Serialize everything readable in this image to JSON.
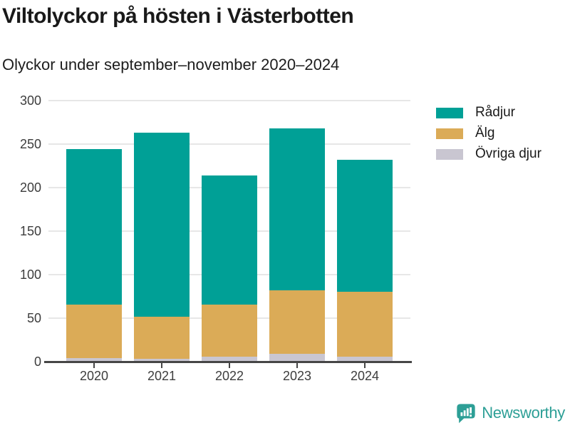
{
  "header": {
    "title": "Viltolyckor på hösten i Västerbotten",
    "subtitle": "Olyckor under september–november 2020–2024"
  },
  "chart_data": {
    "type": "bar",
    "stacked": true,
    "title": "Viltolyckor på hösten i Västerbotten",
    "subtitle": "Olyckor under september–november 2020–2024",
    "categories": [
      "2020",
      "2021",
      "2022",
      "2023",
      "2024"
    ],
    "series": [
      {
        "name": "Rådjur",
        "color": "#00a096",
        "values": [
          178,
          211,
          148,
          186,
          152
        ]
      },
      {
        "name": "Älg",
        "color": "#dbab57",
        "values": [
          62,
          49,
          60,
          73,
          74
        ]
      },
      {
        "name": "Övriga djur",
        "color": "#c9c6d1",
        "values": [
          4,
          3,
          6,
          9,
          6
        ]
      }
    ],
    "stack_order_bottom_to_top": [
      "Övriga djur",
      "Älg",
      "Rådjur"
    ],
    "xlabel": "",
    "ylabel": "",
    "ylim": [
      0,
      300
    ],
    "yticks": [
      0,
      50,
      100,
      150,
      200,
      250,
      300
    ],
    "grid": "horizontal",
    "legend_position": "top-right",
    "axis_color": "#464646",
    "gridline_color": "#e7e7e7",
    "tick_label_color": "#3d3d3d"
  },
  "footer": {
    "brand": "Newsworthy",
    "brand_color": "#2d9f96"
  }
}
